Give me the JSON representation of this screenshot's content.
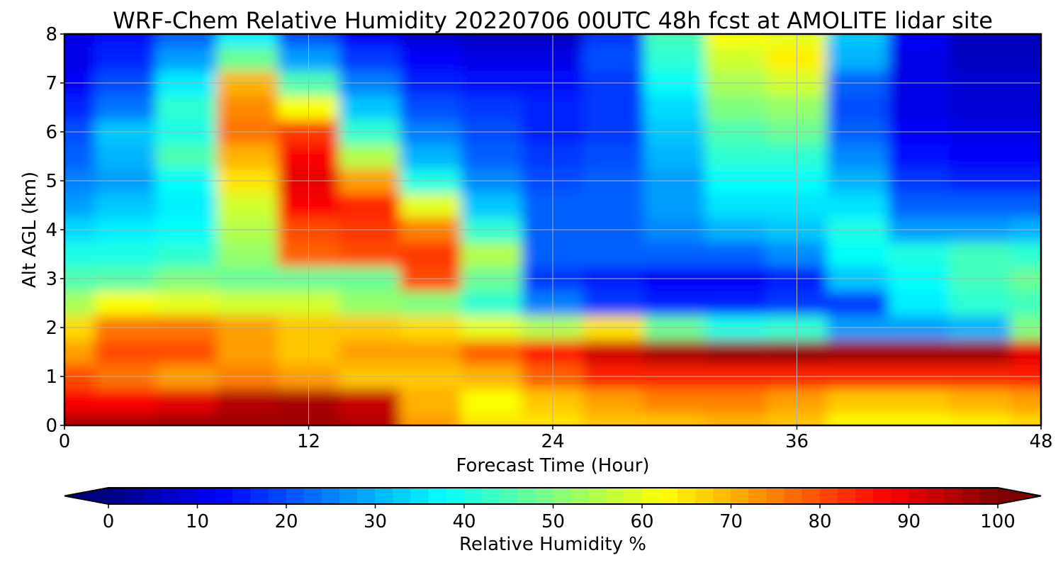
{
  "chart_data": {
    "type": "heatmap",
    "title": "WRF-Chem Relative Humidity 20220706 00UTC 48h fcst at AMOLITE lidar site",
    "xlabel": "Forecast Time (Hour)",
    "ylabel": "Alt AGL (km)",
    "xlim": [
      0,
      48
    ],
    "ylim": [
      0,
      8
    ],
    "xticks": [
      0,
      12,
      24,
      36,
      48
    ],
    "yticks": [
      0,
      1,
      2,
      3,
      4,
      5,
      6,
      7,
      8
    ],
    "grid": true,
    "colormap": "jet",
    "colorbar": {
      "label": "Relative Humidity %",
      "range": [
        0,
        100
      ],
      "ticks": [
        0,
        10,
        20,
        30,
        40,
        50,
        60,
        70,
        80,
        90,
        100
      ],
      "extend": "both",
      "orientation": "horizontal"
    },
    "x": [
      0,
      3,
      6,
      9,
      12,
      15,
      18,
      21,
      24,
      27,
      30,
      33,
      36,
      39,
      42,
      45,
      48
    ],
    "y": [
      0,
      0.5,
      1,
      1.5,
      2,
      2.5,
      3,
      3.5,
      4,
      4.5,
      5,
      5.5,
      6,
      6.5,
      7,
      7.5,
      8
    ],
    "z": [
      [
        96,
        96,
        97,
        97,
        97,
        95,
        72,
        65,
        65,
        68,
        68,
        70,
        68,
        63,
        63,
        64,
        66
      ],
      [
        88,
        88,
        90,
        95,
        96,
        93,
        70,
        62,
        68,
        72,
        75,
        75,
        72,
        68,
        68,
        70,
        72
      ],
      [
        80,
        76,
        72,
        75,
        72,
        68,
        68,
        70,
        78,
        84,
        84,
        84,
        84,
        84,
        84,
        84,
        85
      ],
      [
        72,
        80,
        80,
        72,
        68,
        72,
        72,
        78,
        85,
        92,
        96,
        98,
        98,
        97,
        97,
        97,
        90
      ],
      [
        66,
        76,
        76,
        72,
        68,
        68,
        66,
        60,
        55,
        65,
        48,
        40,
        42,
        28,
        28,
        30,
        50
      ],
      [
        54,
        62,
        60,
        58,
        58,
        52,
        50,
        42,
        25,
        18,
        15,
        15,
        18,
        18,
        36,
        42,
        44
      ],
      [
        45,
        46,
        50,
        48,
        48,
        48,
        80,
        48,
        18,
        15,
        12,
        12,
        15,
        32,
        38,
        44,
        48
      ],
      [
        40,
        40,
        42,
        52,
        78,
        80,
        82,
        55,
        22,
        22,
        22,
        22,
        26,
        38,
        40,
        44,
        42
      ],
      [
        34,
        36,
        38,
        55,
        80,
        82,
        75,
        42,
        22,
        22,
        26,
        30,
        32,
        40,
        28,
        28,
        30
      ],
      [
        28,
        32,
        36,
        58,
        88,
        84,
        60,
        32,
        22,
        22,
        28,
        35,
        35,
        35,
        22,
        22,
        22
      ],
      [
        25,
        28,
        38,
        65,
        90,
        72,
        40,
        26,
        20,
        22,
        28,
        38,
        38,
        30,
        18,
        16,
        16
      ],
      [
        22,
        30,
        45,
        70,
        88,
        55,
        30,
        22,
        18,
        20,
        30,
        42,
        42,
        26,
        14,
        12,
        12
      ],
      [
        20,
        32,
        40,
        76,
        82,
        42,
        25,
        20,
        16,
        18,
        32,
        45,
        48,
        22,
        12,
        10,
        10
      ],
      [
        16,
        24,
        42,
        74,
        62,
        32,
        20,
        18,
        16,
        18,
        34,
        50,
        52,
        20,
        10,
        8,
        8
      ],
      [
        12,
        20,
        36,
        70,
        45,
        25,
        16,
        14,
        14,
        18,
        38,
        54,
        58,
        22,
        10,
        8,
        8
      ],
      [
        10,
        16,
        28,
        48,
        28,
        18,
        12,
        10,
        10,
        20,
        42,
        58,
        64,
        30,
        10,
        6,
        6
      ],
      [
        10,
        14,
        22,
        36,
        20,
        12,
        8,
        6,
        6,
        18,
        44,
        62,
        60,
        32,
        12,
        6,
        6
      ]
    ]
  }
}
